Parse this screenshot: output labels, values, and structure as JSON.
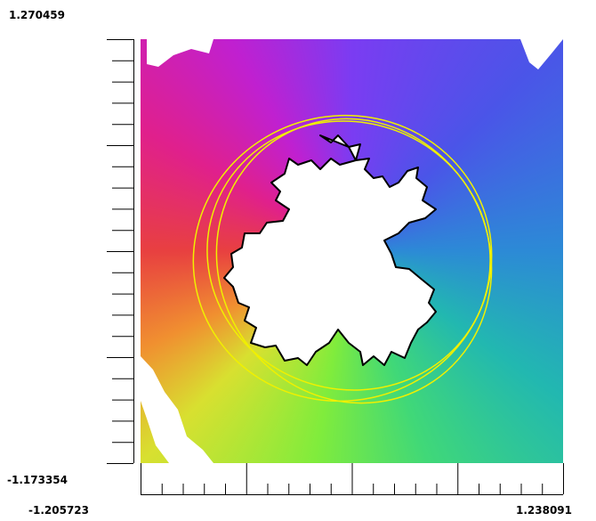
{
  "axes": {
    "y_top_label": "1.270459",
    "y_bottom_label": "-1.173354",
    "x_left_label": "-1.205723",
    "x_right_label": "1.238091"
  }
}
